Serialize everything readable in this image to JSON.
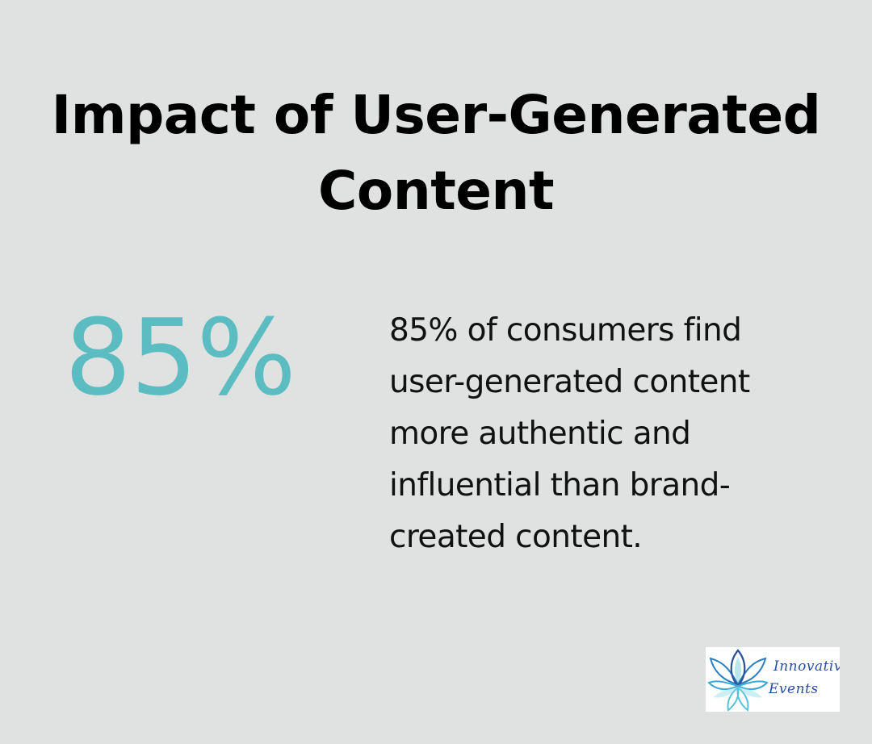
{
  "title": "Impact of User-Generated Content",
  "stat": {
    "value": "85%",
    "description": "85% of consumers find user-generated content more authentic and influential than brand-created content."
  },
  "logo": {
    "brand_line_1": "Innovative",
    "brand_line_2": "Events",
    "icon": "lotus-flower-icon"
  },
  "colors": {
    "background": "#e0e2e1",
    "accent": "#5bbcc2",
    "title": "#000000",
    "body_text": "#111111",
    "logo_text": "#2a4f9c"
  }
}
